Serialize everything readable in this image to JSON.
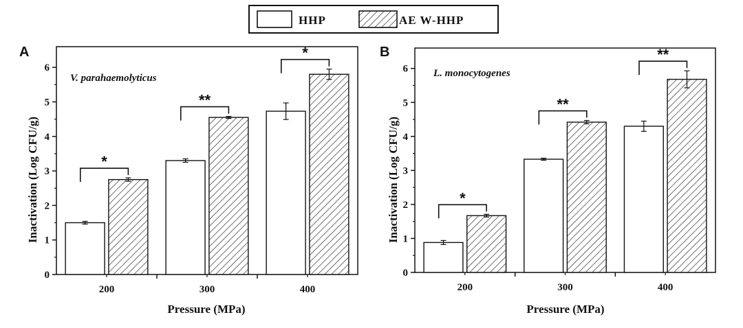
{
  "legend": {
    "items": [
      {
        "label": "HHP",
        "pattern": "plain"
      },
      {
        "label": "AE W-HHP",
        "pattern": "hatched"
      }
    ]
  },
  "chart_data": [
    {
      "type": "bar",
      "panel_label": "A",
      "annotation": "V. parahaemolyticus",
      "xlabel": "Pressure (MPa)",
      "ylabel": "Inactivation (Log CFU/g)",
      "categories": [
        "200",
        "300",
        "400"
      ],
      "ylim": [
        0,
        6.6
      ],
      "yticks": [
        "0",
        "1",
        "2",
        "3",
        "4",
        "5",
        "6"
      ],
      "series": [
        {
          "name": "HHP",
          "values": [
            1.5,
            3.3,
            4.73
          ],
          "errors": [
            0.04,
            0.05,
            0.24
          ]
        },
        {
          "name": "AE W-HHP",
          "values": [
            2.75,
            4.55,
            5.8
          ],
          "errors": [
            0.05,
            0.03,
            0.15
          ]
        }
      ],
      "significance": [
        "*",
        "**",
        "*"
      ]
    },
    {
      "type": "bar",
      "panel_label": "B",
      "annotation": "L. monocytogenes",
      "xlabel": "Pressure (MPa)",
      "ylabel": "Inactivation (Log CFU/g)",
      "categories": [
        "200",
        "300",
        "400"
      ],
      "ylim": [
        0,
        6.6
      ],
      "yticks": [
        "0",
        "1",
        "2",
        "3",
        "4",
        "5",
        "6"
      ],
      "series": [
        {
          "name": "HHP",
          "values": [
            0.88,
            3.33,
            4.3
          ],
          "errors": [
            0.06,
            0.03,
            0.15
          ]
        },
        {
          "name": "AE W-HHP",
          "values": [
            1.67,
            4.42,
            5.68
          ],
          "errors": [
            0.04,
            0.05,
            0.25
          ]
        }
      ],
      "significance": [
        "*",
        "**",
        "**"
      ]
    }
  ]
}
